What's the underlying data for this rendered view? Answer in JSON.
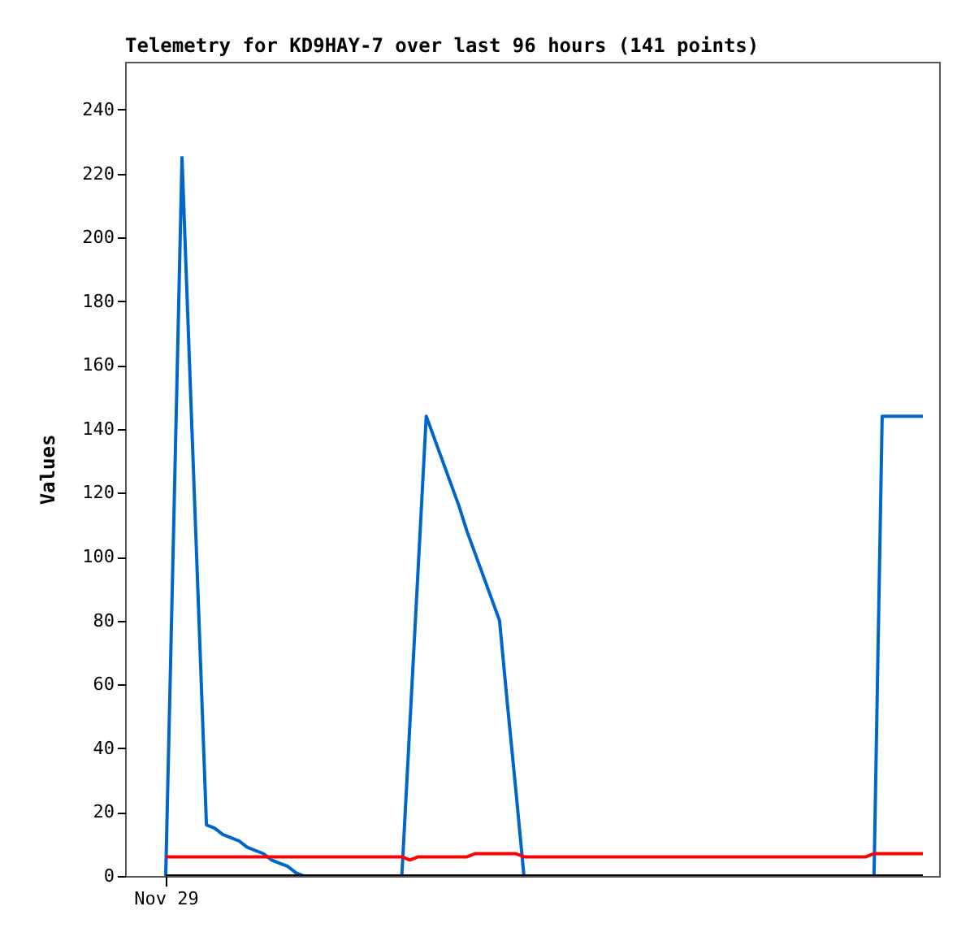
{
  "chart_data": {
    "type": "line",
    "title": "Telemetry for KD9HAY-7 over last 96 hours (141 points)",
    "ylabel": "Values",
    "categories": [
      "Nov 29",
      null,
      null,
      null,
      null,
      null,
      null,
      null,
      null,
      null,
      null,
      null,
      null,
      null,
      null,
      null,
      null,
      null,
      null,
      null,
      null,
      null,
      null,
      null,
      null,
      null,
      null,
      null,
      null,
      null,
      null,
      null,
      null,
      null,
      null,
      null,
      null,
      null,
      null,
      null,
      null,
      null,
      null,
      null,
      null,
      null,
      null,
      null,
      null,
      null,
      null,
      null,
      null,
      null,
      null,
      null,
      null,
      null,
      null,
      null,
      null,
      null,
      null,
      null,
      null,
      null,
      null,
      null,
      null,
      null,
      null,
      null,
      null,
      null,
      null,
      null,
      null,
      null,
      null,
      null,
      null,
      null,
      null,
      null,
      null,
      null,
      null,
      null,
      null,
      null,
      null,
      null,
      null,
      null
    ],
    "series": [
      {
        "color": "#0066cc",
        "values": [
          0,
          112,
          225,
          155,
          86,
          16,
          15,
          13,
          12,
          11,
          9,
          8,
          7,
          5,
          4,
          3,
          1,
          0,
          null,
          null,
          null,
          null,
          null,
          null,
          null,
          null,
          null,
          null,
          null,
          0,
          48,
          96,
          144,
          137,
          130,
          123,
          116,
          108,
          101,
          94,
          87,
          80,
          53,
          27,
          0,
          null,
          null,
          null,
          null,
          null,
          null,
          null,
          null,
          null,
          null,
          null,
          null,
          null,
          null,
          null,
          null,
          null,
          null,
          null,
          null,
          null,
          null,
          null,
          null,
          null,
          null,
          null,
          null,
          null,
          null,
          null,
          null,
          null,
          null,
          null,
          null,
          null,
          null,
          null,
          null,
          null,
          null,
          0,
          144,
          144,
          144,
          144,
          144,
          144
        ]
      },
      {
        "color": "#ff0000",
        "values": [
          6,
          6,
          6,
          6,
          6,
          6,
          6,
          6,
          6,
          6,
          6,
          6,
          6,
          6,
          6,
          6,
          6,
          6,
          6,
          6,
          6,
          6,
          6,
          6,
          6,
          6,
          6,
          6,
          6,
          6,
          5,
          6,
          6,
          6,
          6,
          6,
          6,
          6,
          7,
          7,
          7,
          7,
          7,
          7,
          6,
          6,
          6,
          6,
          6,
          6,
          6,
          6,
          6,
          6,
          6,
          6,
          6,
          6,
          6,
          6,
          6,
          6,
          6,
          6,
          6,
          6,
          6,
          6,
          6,
          6,
          6,
          6,
          6,
          6,
          6,
          6,
          6,
          6,
          6,
          6,
          6,
          6,
          6,
          6,
          6,
          6,
          6,
          7,
          7,
          7,
          7,
          7,
          7,
          7
        ]
      },
      {
        "color": "#000000",
        "values": [
          0,
          0,
          0,
          0,
          0,
          0,
          0,
          0,
          0,
          0,
          0,
          0,
          0,
          0,
          0,
          0,
          0,
          0,
          0,
          0,
          0,
          0,
          0,
          0,
          0,
          0,
          0,
          0,
          0,
          0,
          0,
          0,
          0,
          0,
          0,
          0,
          0,
          0,
          0,
          0,
          0,
          0,
          0,
          0,
          0,
          0,
          0,
          0,
          0,
          0,
          0,
          0,
          0,
          0,
          0,
          0,
          0,
          0,
          0,
          0,
          0,
          0,
          0,
          0,
          0,
          0,
          0,
          0,
          0,
          0,
          0,
          0,
          0,
          0,
          0,
          0,
          0,
          0,
          0,
          0,
          0,
          0,
          0,
          0,
          0,
          0,
          0,
          0,
          0,
          0,
          0,
          0,
          0,
          0
        ]
      }
    ],
    "grid": false,
    "legend": false,
    "ylim": [
      0,
      255
    ],
    "yticks": [
      0,
      20,
      40,
      60,
      80,
      100,
      120,
      140,
      160,
      180,
      200,
      220,
      240
    ]
  }
}
